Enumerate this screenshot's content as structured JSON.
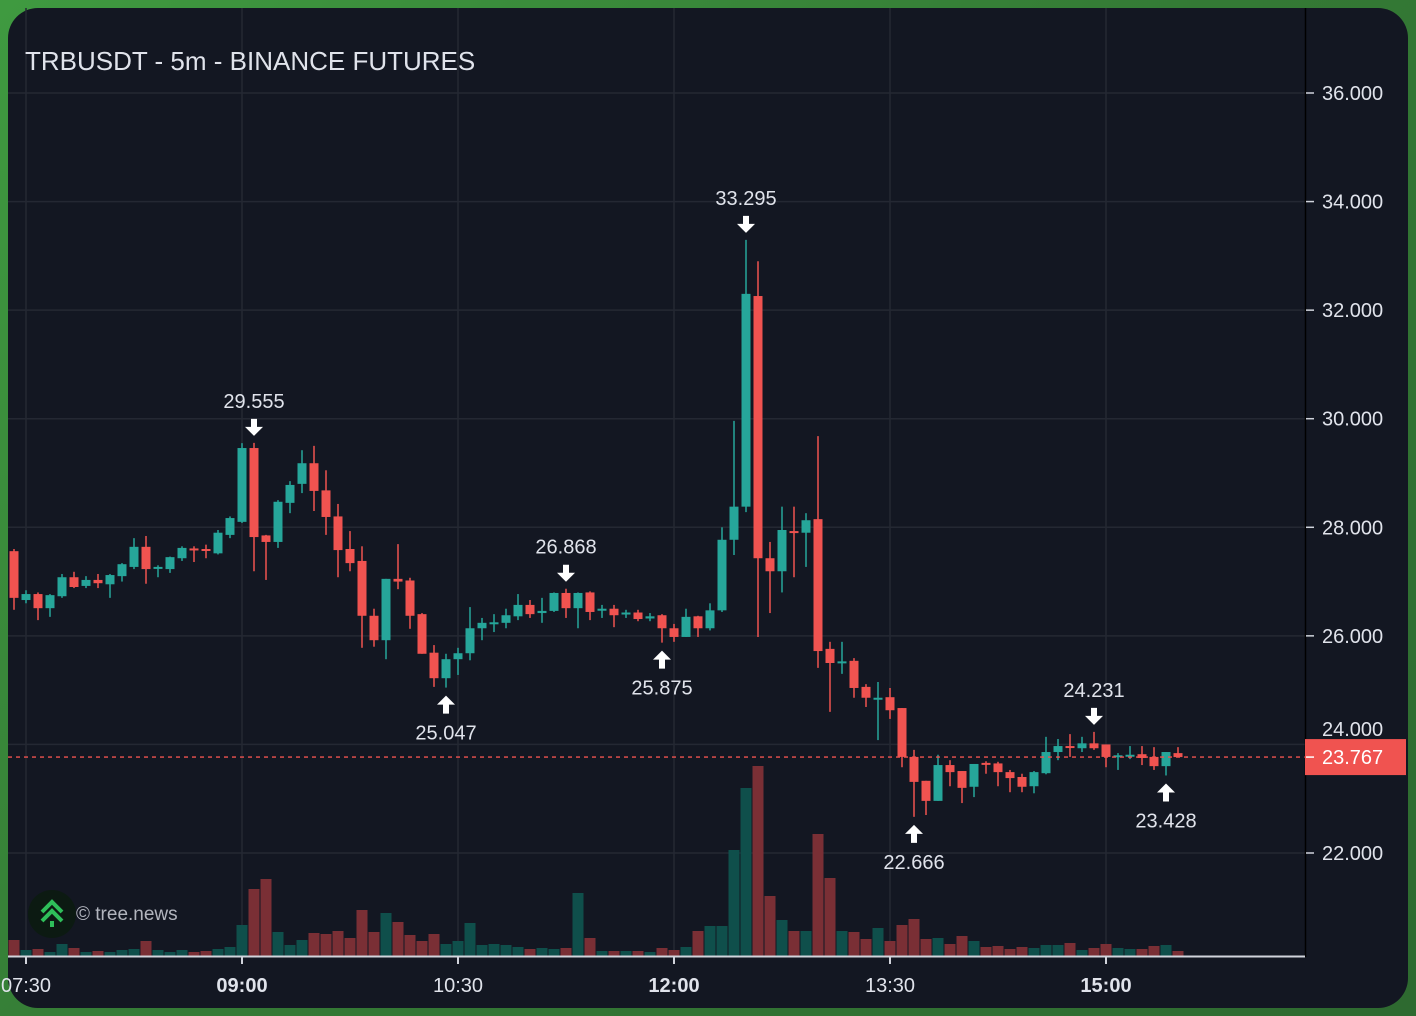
{
  "header": {
    "title": "TRBUSDT - 5m - BINANCE FUTURES"
  },
  "watermark": {
    "credit": "© tree.news"
  },
  "colors": {
    "up": "#26a69a",
    "down": "#f05350",
    "up_volume": "#0f4f4b",
    "down_volume": "#7a2f35",
    "grid": "#242833",
    "text": "#e0e3eb",
    "last_price_bg": "#f05350"
  },
  "chart_data": {
    "type": "candlestick",
    "title": "TRBUSDT - 5m - BINANCE FUTURES",
    "ylim": [
      20.5,
      37.5
    ],
    "y_ticks": [
      "22.000",
      "24.000",
      "26.000",
      "28.000",
      "30.000",
      "32.000",
      "34.000",
      "36.000"
    ],
    "y_tick_values": [
      22,
      24,
      26,
      28,
      30,
      32,
      34,
      36
    ],
    "x_ticks": [
      {
        "label": "07:30",
        "index": 1,
        "bold": false
      },
      {
        "label": "09:00",
        "index": 19,
        "bold": true
      },
      {
        "label": "10:30",
        "index": 37,
        "bold": false
      },
      {
        "label": "12:00",
        "index": 55,
        "bold": true
      },
      {
        "label": "13:30",
        "index": 73,
        "bold": false
      },
      {
        "label": "15:00",
        "index": 91,
        "bold": true
      }
    ],
    "last_price": "23.767",
    "last_price_value": 23.767,
    "annotations": [
      {
        "index": 20,
        "kind": "high",
        "label": "29.555"
      },
      {
        "index": 36,
        "kind": "low",
        "label": "25.047"
      },
      {
        "index": 46,
        "kind": "high",
        "label": "26.868"
      },
      {
        "index": 54,
        "kind": "low",
        "label": "25.875"
      },
      {
        "index": 61,
        "kind": "high",
        "label": "33.295"
      },
      {
        "index": 75,
        "kind": "low",
        "label": "22.666"
      },
      {
        "index": 90,
        "kind": "high",
        "label": "24.231"
      },
      {
        "index": 96,
        "kind": "low",
        "label": "23.428"
      }
    ],
    "ohlcv_columns": [
      "open",
      "high",
      "low",
      "close",
      "volume_relative"
    ],
    "ohlcv": [
      [
        27.56,
        27.6,
        26.48,
        26.7,
        16
      ],
      [
        26.66,
        26.84,
        26.6,
        26.77,
        6
      ],
      [
        26.77,
        26.8,
        26.29,
        26.51,
        7
      ],
      [
        26.51,
        26.77,
        26.35,
        26.75,
        4
      ],
      [
        26.73,
        27.14,
        26.7,
        27.08,
        12
      ],
      [
        27.08,
        27.18,
        26.88,
        26.9,
        8
      ],
      [
        26.92,
        27.1,
        26.88,
        27.03,
        4
      ],
      [
        27.03,
        27.14,
        26.88,
        26.97,
        5
      ],
      [
        26.95,
        27.14,
        26.7,
        27.12,
        4
      ],
      [
        27.1,
        27.34,
        27.0,
        27.32,
        6
      ],
      [
        27.27,
        27.8,
        27.23,
        27.64,
        7
      ],
      [
        27.64,
        27.84,
        26.96,
        27.23,
        15
      ],
      [
        27.25,
        27.3,
        27.08,
        27.27,
        6
      ],
      [
        27.23,
        27.46,
        27.16,
        27.45,
        4
      ],
      [
        27.43,
        27.65,
        27.38,
        27.62,
        6
      ],
      [
        27.61,
        27.65,
        27.36,
        27.59,
        4
      ],
      [
        27.6,
        27.68,
        27.43,
        27.57,
        5
      ],
      [
        27.52,
        27.95,
        27.5,
        27.9,
        7
      ],
      [
        27.86,
        28.2,
        27.8,
        28.17,
        9
      ],
      [
        28.1,
        29.55,
        28.08,
        29.46,
        31
      ],
      [
        29.46,
        29.555,
        27.19,
        27.82,
        67
      ],
      [
        27.85,
        27.86,
        27.03,
        27.73,
        77
      ],
      [
        27.73,
        28.5,
        27.62,
        28.47,
        24
      ],
      [
        28.45,
        28.85,
        28.26,
        28.78,
        11
      ],
      [
        28.8,
        29.42,
        28.63,
        29.18,
        16
      ],
      [
        29.18,
        29.5,
        28.3,
        28.67,
        23
      ],
      [
        28.68,
        29.05,
        27.86,
        28.19,
        22
      ],
      [
        28.2,
        28.43,
        27.08,
        27.58,
        25
      ],
      [
        27.6,
        27.93,
        27.19,
        27.34,
        18
      ],
      [
        27.38,
        27.65,
        25.78,
        26.37,
        46
      ],
      [
        26.37,
        26.5,
        25.8,
        25.92,
        24
      ],
      [
        25.92,
        27.05,
        25.57,
        27.05,
        43
      ],
      [
        27.05,
        27.69,
        26.86,
        27.0,
        34
      ],
      [
        27.02,
        27.07,
        26.13,
        26.37,
        21
      ],
      [
        26.4,
        26.42,
        25.67,
        25.67,
        15
      ],
      [
        25.69,
        25.83,
        25.06,
        25.22,
        22
      ],
      [
        25.22,
        25.67,
        25.047,
        25.57,
        12
      ],
      [
        25.57,
        25.78,
        25.28,
        25.68,
        15
      ],
      [
        25.68,
        26.53,
        25.55,
        26.14,
        33
      ],
      [
        26.14,
        26.33,
        25.92,
        26.24,
        11
      ],
      [
        26.22,
        26.4,
        26.07,
        26.25,
        12
      ],
      [
        26.24,
        26.5,
        26.14,
        26.38,
        11
      ],
      [
        26.36,
        26.77,
        26.29,
        26.57,
        9
      ],
      [
        26.57,
        26.66,
        26.33,
        26.4,
        7
      ],
      [
        26.42,
        26.7,
        26.24,
        26.46,
        8
      ],
      [
        26.46,
        26.8,
        26.44,
        26.79,
        7
      ],
      [
        26.79,
        26.868,
        26.33,
        26.51,
        8
      ],
      [
        26.51,
        26.8,
        26.14,
        26.79,
        63
      ],
      [
        26.8,
        26.82,
        26.29,
        26.44,
        18
      ],
      [
        26.47,
        26.57,
        26.33,
        26.5,
        5
      ],
      [
        26.5,
        26.57,
        26.16,
        26.38,
        5
      ],
      [
        26.41,
        26.48,
        26.33,
        26.43,
        5
      ],
      [
        26.43,
        26.48,
        26.27,
        26.31,
        5
      ],
      [
        26.32,
        26.42,
        26.27,
        26.36,
        4
      ],
      [
        26.38,
        26.4,
        25.875,
        26.14,
        8
      ],
      [
        26.14,
        26.22,
        25.89,
        25.98,
        6
      ],
      [
        25.98,
        26.5,
        25.98,
        26.35,
        9
      ],
      [
        26.36,
        26.37,
        25.98,
        26.14,
        25
      ],
      [
        26.14,
        26.6,
        26.1,
        26.47,
        30
      ],
      [
        26.47,
        28.0,
        26.44,
        27.77,
        30
      ],
      [
        27.77,
        29.96,
        27.49,
        28.38,
        106
      ],
      [
        28.38,
        33.295,
        28.28,
        32.3,
        168
      ],
      [
        32.26,
        32.9,
        25.98,
        27.43,
        190
      ],
      [
        27.43,
        27.73,
        26.42,
        27.19,
        60
      ],
      [
        27.19,
        28.38,
        26.8,
        27.95,
        36
      ],
      [
        27.93,
        28.38,
        27.08,
        27.9,
        25
      ],
      [
        27.9,
        28.26,
        27.27,
        28.13,
        25
      ],
      [
        28.15,
        29.68,
        25.41,
        25.72,
        122
      ],
      [
        25.76,
        25.89,
        24.6,
        25.5,
        78
      ],
      [
        25.5,
        25.89,
        25.3,
        25.53,
        25
      ],
      [
        25.54,
        25.59,
        24.86,
        25.04,
        24
      ],
      [
        25.06,
        25.11,
        24.69,
        24.86,
        17
      ],
      [
        24.84,
        25.15,
        24.08,
        24.86,
        28
      ],
      [
        24.87,
        25.04,
        24.47,
        24.63,
        15
      ],
      [
        24.67,
        24.67,
        23.58,
        23.77,
        31
      ],
      [
        23.77,
        23.9,
        22.666,
        23.31,
        37
      ],
      [
        23.33,
        23.33,
        22.7,
        22.96,
        17
      ],
      [
        22.96,
        23.81,
        22.96,
        23.62,
        18
      ],
      [
        23.62,
        23.71,
        23.23,
        23.49,
        12
      ],
      [
        23.51,
        23.51,
        22.92,
        23.2,
        20
      ],
      [
        23.22,
        23.64,
        23.03,
        23.64,
        15
      ],
      [
        23.66,
        23.69,
        23.46,
        23.63,
        9
      ],
      [
        23.65,
        23.68,
        23.23,
        23.49,
        10
      ],
      [
        23.49,
        23.53,
        23.12,
        23.38,
        7
      ],
      [
        23.4,
        23.46,
        23.12,
        23.22,
        9
      ],
      [
        23.23,
        23.51,
        23.1,
        23.49,
        8
      ],
      [
        23.47,
        24.14,
        23.45,
        23.86,
        11
      ],
      [
        23.86,
        24.1,
        23.71,
        23.97,
        11
      ],
      [
        23.97,
        24.19,
        23.77,
        23.94,
        13
      ],
      [
        23.93,
        24.14,
        23.86,
        24.02,
        6
      ],
      [
        24.02,
        24.231,
        23.9,
        23.93,
        8
      ],
      [
        24.0,
        24.0,
        23.58,
        23.77,
        12
      ],
      [
        23.77,
        23.84,
        23.53,
        23.8,
        8
      ],
      [
        23.79,
        23.97,
        23.73,
        23.81,
        7
      ],
      [
        23.82,
        23.97,
        23.62,
        23.75,
        7
      ],
      [
        23.77,
        23.95,
        23.53,
        23.6,
        10
      ],
      [
        23.6,
        23.86,
        23.428,
        23.86,
        11
      ],
      [
        23.84,
        23.95,
        23.76,
        23.767,
        5
      ]
    ]
  }
}
